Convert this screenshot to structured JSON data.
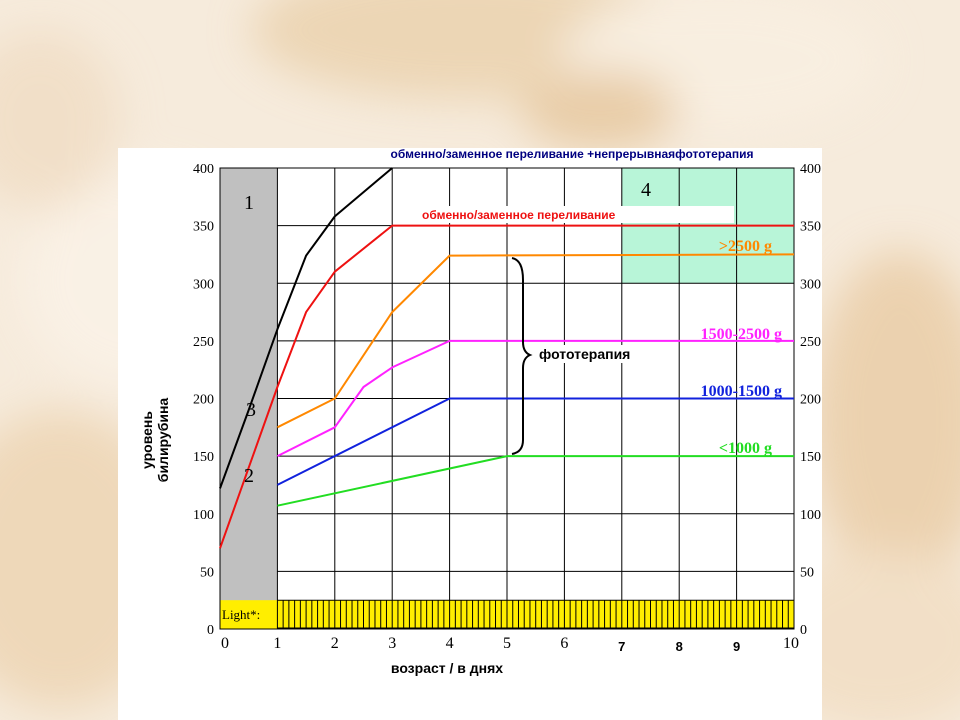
{
  "chart_data": {
    "type": "line",
    "title": "обменно/заменное переливание +непрерывнаяфототерапия",
    "xlabel": "возраст / в днях",
    "ylabel_line1": "уровень",
    "ylabel_line2": "билирубина",
    "xlim": [
      0,
      10
    ],
    "ylim": [
      0,
      400
    ],
    "x_ticks": [
      "0",
      "1",
      "2",
      "3",
      "4",
      "5",
      "6",
      "7",
      "8",
      "9",
      "10"
    ],
    "y_ticks": [
      "0",
      "50",
      "100",
      "150",
      "200",
      "250",
      "300",
      "350",
      "400"
    ],
    "grid": true,
    "series": [
      {
        "name": "",
        "color": "#000000",
        "x": [
          0,
          0.5,
          1,
          1.5,
          2,
          3
        ],
        "y": [
          122,
          190,
          260,
          324,
          358,
          400
        ]
      },
      {
        "name": "обменно/заменное переливание",
        "color": "#ee1111",
        "x": [
          0,
          1,
          1.5,
          2,
          3,
          10
        ],
        "y": [
          70,
          210,
          275,
          310,
          350,
          350
        ]
      },
      {
        "name": ">2500 g",
        "color": "#ff8800",
        "x": [
          1,
          2,
          3,
          4,
          10
        ],
        "y": [
          175,
          200,
          275,
          324,
          325
        ]
      },
      {
        "name": "1500-2500 g",
        "color": "#ff22ff",
        "x": [
          1,
          2,
          2.5,
          3,
          4,
          10
        ],
        "y": [
          150,
          175,
          210,
          227,
          250,
          250
        ]
      },
      {
        "name": "1000-1500 g",
        "color": "#1122dd",
        "x": [
          1,
          4,
          10
        ],
        "y": [
          125,
          200,
          200
        ]
      },
      {
        "name": "<1000 g",
        "color": "#22dd22",
        "x": [
          1,
          5,
          10
        ],
        "y": [
          107,
          150,
          150
        ]
      }
    ],
    "zones": [
      {
        "label": "1",
        "color": "#c0c0c0"
      },
      {
        "label": "4",
        "color": "#b8f5d8"
      }
    ],
    "curve_labels": [
      "2",
      "3"
    ],
    "bracket_label": "фототерапия",
    "light_bar": {
      "label": "Light*:",
      "color": "#ffee00"
    },
    "colors": {
      "gray_zone": "#c0c0c0",
      "green_zone": "#b8f5d8",
      "title": "#000080"
    }
  }
}
